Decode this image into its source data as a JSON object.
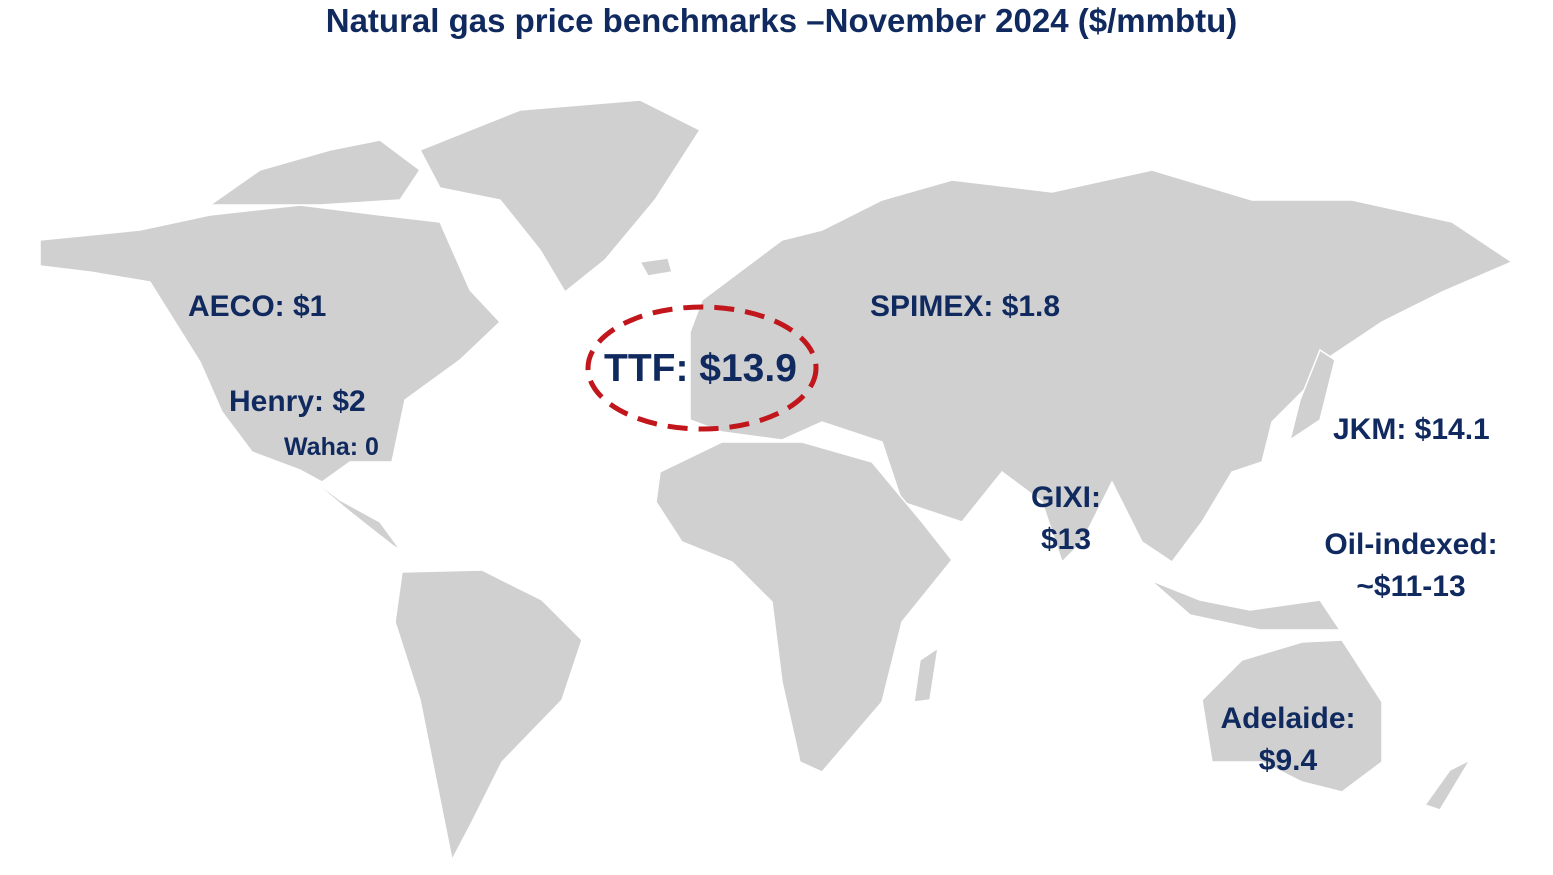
{
  "title": "Natural gas price benchmarks –November 2024 ($/mmbtu)",
  "colors": {
    "text": "#102a5f",
    "highlight": "#c0161c",
    "land": "#d0d0d0",
    "borders": "#ffffff"
  },
  "highlighted_benchmark": "TTF",
  "benchmarks": {
    "aeco": "AECO: $1",
    "henry": "Henry: $2",
    "waha": "Waha: 0",
    "ttf": "TTF: $13.9",
    "spimex": "SPIMEX: $1.8",
    "jkm": "JKM: $14.1",
    "gixi_name": "GIXI:",
    "gixi_value": "$13",
    "oil_name": "Oil-indexed:",
    "oil_value": "~$11-13",
    "adelaide_name": "Adelaide:",
    "adelaide_value": "$9.4"
  }
}
